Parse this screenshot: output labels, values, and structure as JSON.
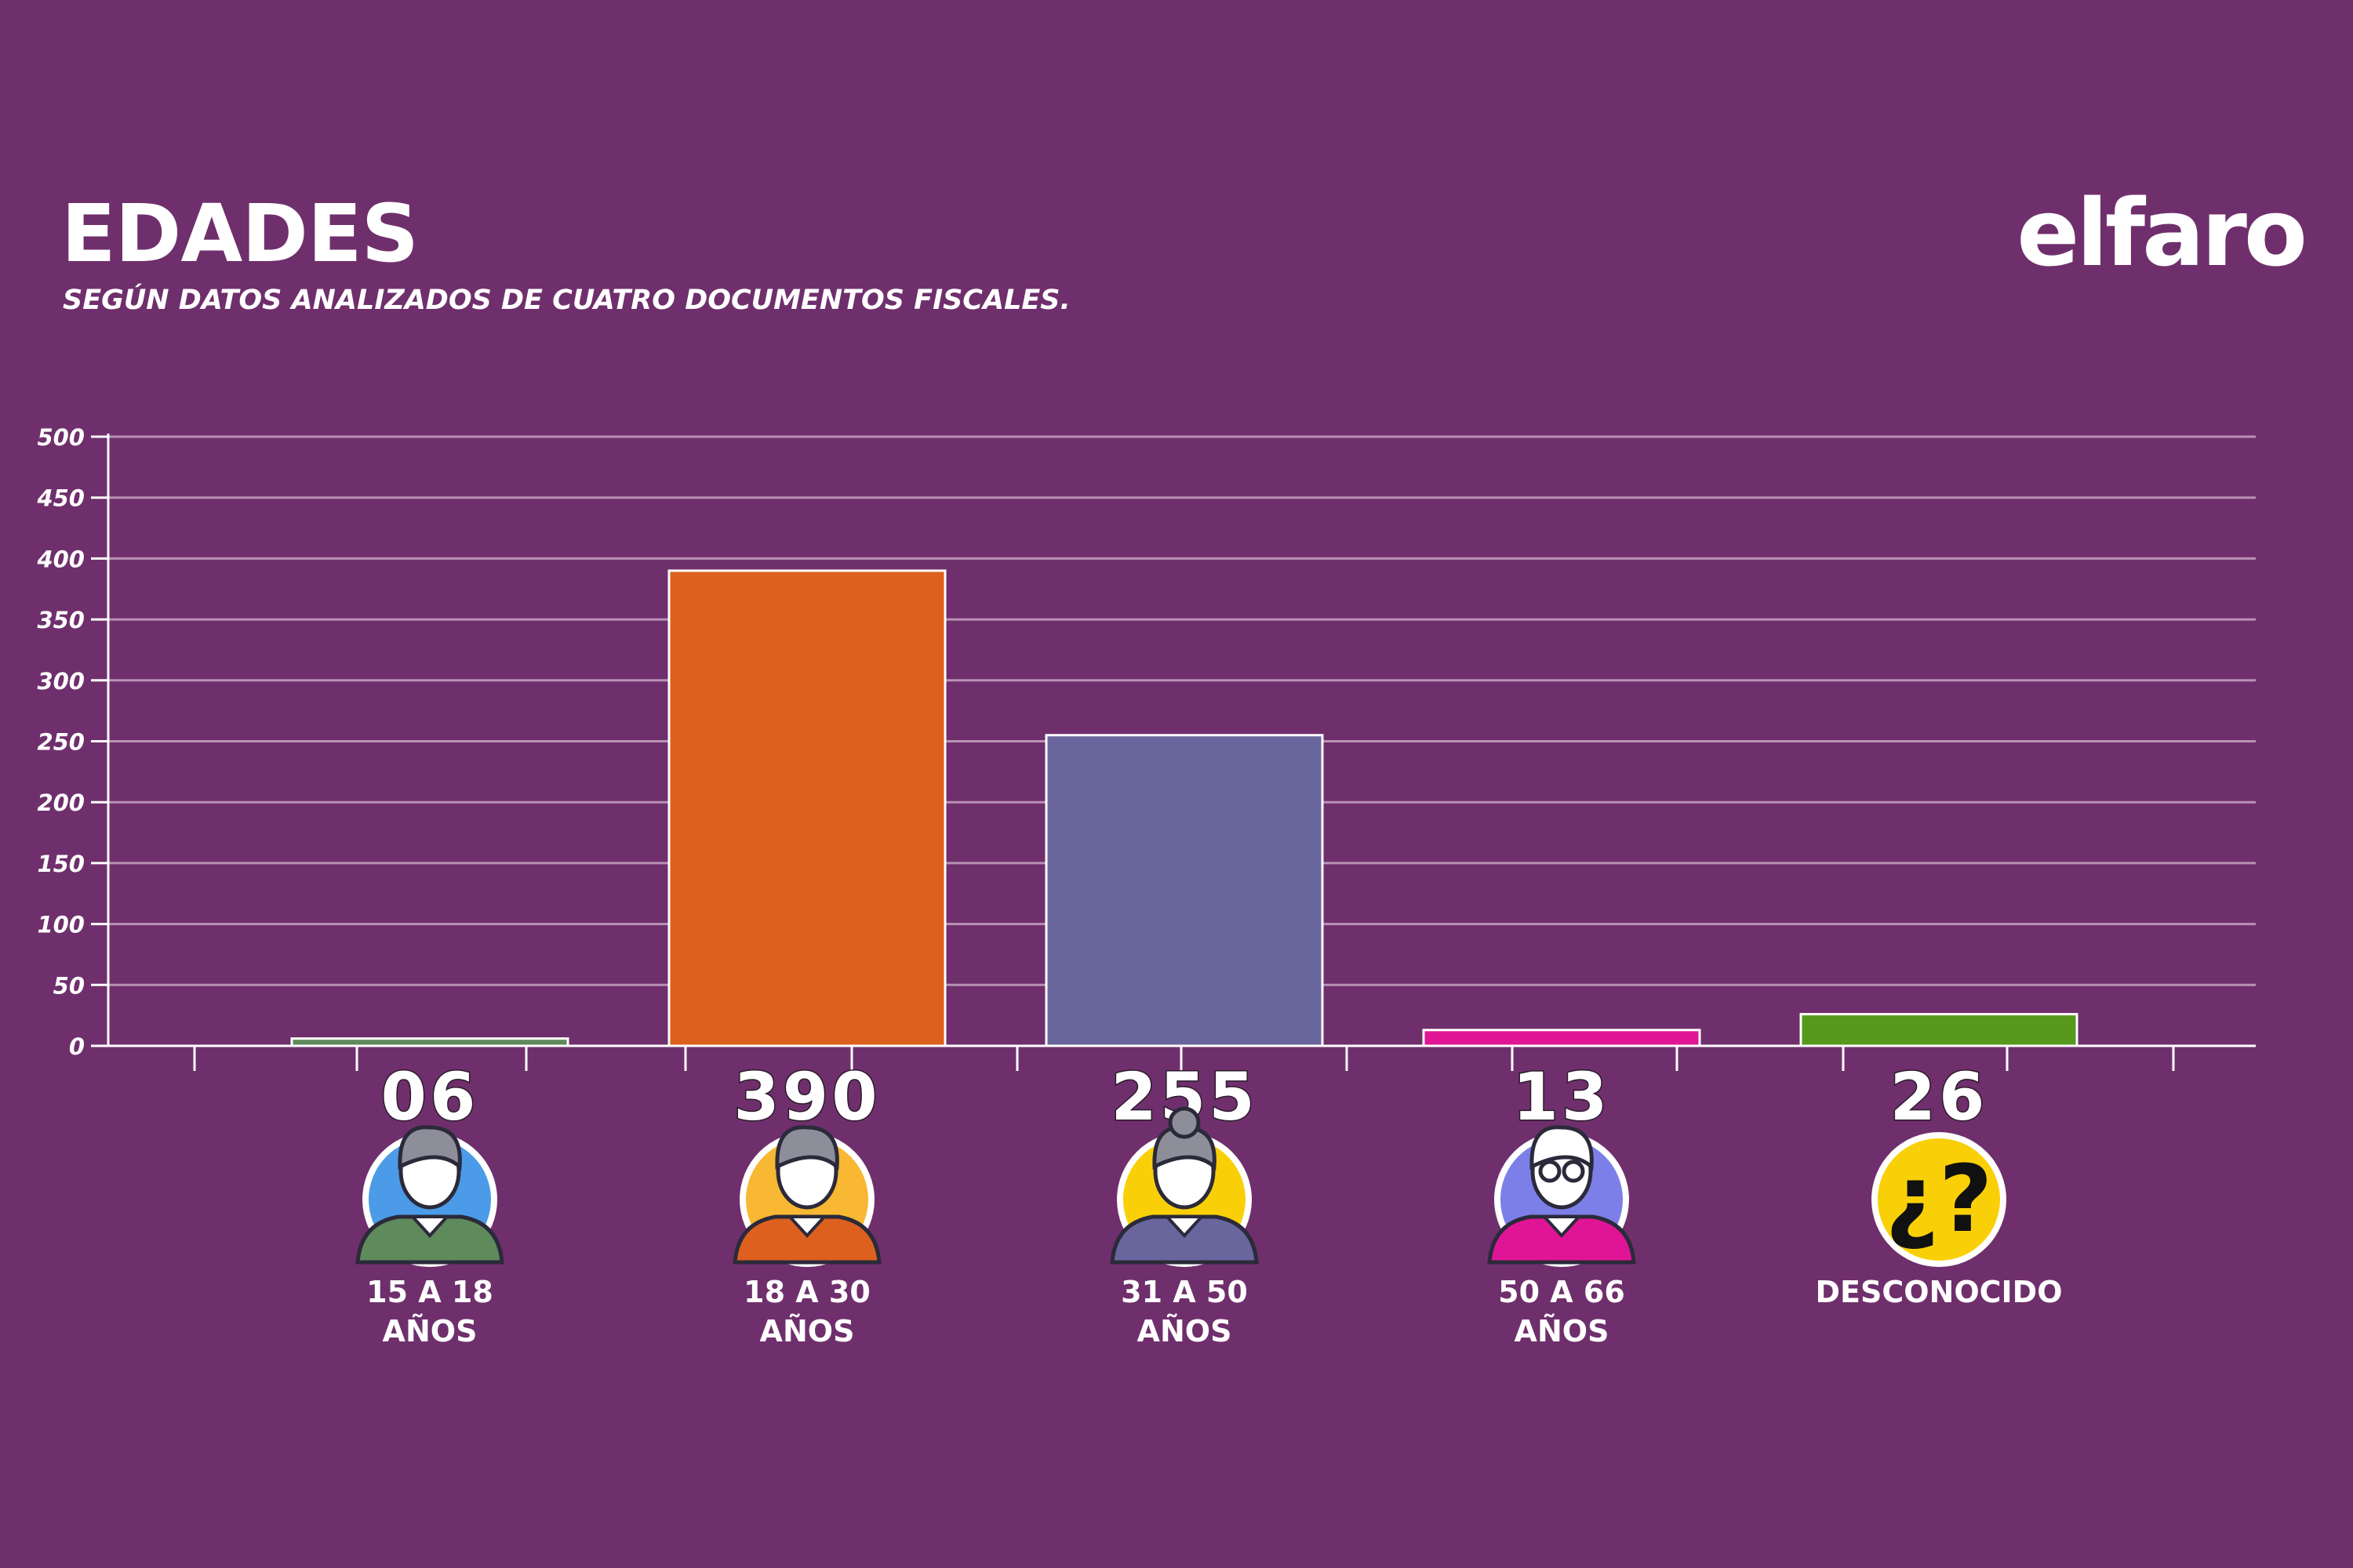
{
  "header": {
    "title": "EDADES",
    "subtitle": "SEGÚN DATOS ANALIZADOS DE CUATRO DOCUMENTOS FISCALES.",
    "brand": "elfaro"
  },
  "chart_data": {
    "type": "bar",
    "title": "EDADES",
    "subtitle": "SEGÚN DATOS ANALIZADOS DE CUATRO DOCUMENTOS FISCALES.",
    "categories": [
      [
        "15 A 18",
        "AÑOS"
      ],
      [
        "18 A 30",
        "AÑOS"
      ],
      [
        "31 A 50",
        "AÑOS"
      ],
      [
        "50 A 66",
        "AÑOS"
      ],
      [
        "DESCONOCIDO"
      ]
    ],
    "values": [
      6,
      390,
      255,
      13,
      26
    ],
    "value_labels": [
      "06",
      "390",
      "255",
      "13",
      "26"
    ],
    "bar_colors": [
      "#5f8a5c",
      "#dd601e",
      "#69669e",
      "#e01596",
      "#56991c"
    ],
    "icons": [
      "young-person-icon",
      "adult-person-icon",
      "woman-person-icon",
      "elder-person-icon",
      "question-mark-icon"
    ],
    "icon_colors": [
      "#4c9be8",
      "#f8b833",
      "#f9d008",
      "#7d7fe8",
      "#f9d008"
    ],
    "yticks": [
      0,
      50,
      100,
      150,
      200,
      250,
      300,
      350,
      400,
      450,
      500
    ],
    "ylim": [
      0,
      500
    ],
    "grid": true
  }
}
